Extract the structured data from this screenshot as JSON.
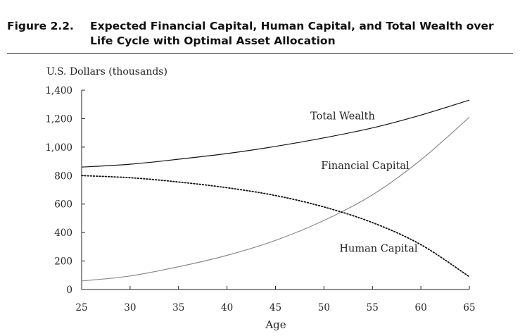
{
  "figure": {
    "number": "Figure 2.2.",
    "title": "Expected Financial Capital, Human Capital, and Total Wealth over Life Cycle with Optimal Asset Allocation"
  },
  "chart_data": {
    "type": "line",
    "ylabel": "U.S. Dollars (thousands)",
    "xlabel": "Age",
    "xlim": [
      25,
      65
    ],
    "ylim": [
      0,
      1400
    ],
    "xticks": [
      25,
      30,
      35,
      40,
      45,
      50,
      55,
      60,
      65
    ],
    "yticks": [
      0,
      200,
      400,
      600,
      800,
      1000,
      1200,
      1400
    ],
    "ytick_labels": [
      "0",
      "200",
      "400",
      "600",
      "800",
      "1,000",
      "1,200",
      "1,400"
    ],
    "grid": false,
    "legend": "inline labels",
    "series": [
      {
        "name": "Total Wealth",
        "style": "solid",
        "color": "#111111",
        "x": [
          25,
          30,
          35,
          40,
          45,
          50,
          55,
          60,
          65
        ],
        "y": [
          860,
          880,
          915,
          955,
          1005,
          1065,
          1135,
          1225,
          1330
        ]
      },
      {
        "name": "Financial Capital",
        "style": "solid",
        "color": "#8a8a8a",
        "x": [
          25,
          30,
          35,
          40,
          45,
          50,
          55,
          60,
          65
        ],
        "y": [
          60,
          95,
          160,
          240,
          345,
          485,
          665,
          910,
          1210
        ]
      },
      {
        "name": "Human Capital",
        "style": "dotted",
        "color": "#111111",
        "x": [
          25,
          30,
          35,
          40,
          45,
          50,
          55,
          60,
          65
        ],
        "y": [
          800,
          785,
          755,
          715,
          660,
          580,
          470,
          315,
          90
        ]
      }
    ],
    "annotations": [
      {
        "text": "Total Wealth",
        "x": 48.6,
        "y": 1195
      },
      {
        "text": "Financial Capital",
        "x": 49.7,
        "y": 845
      },
      {
        "text": "Human Capital",
        "x": 51.6,
        "y": 265
      }
    ]
  }
}
